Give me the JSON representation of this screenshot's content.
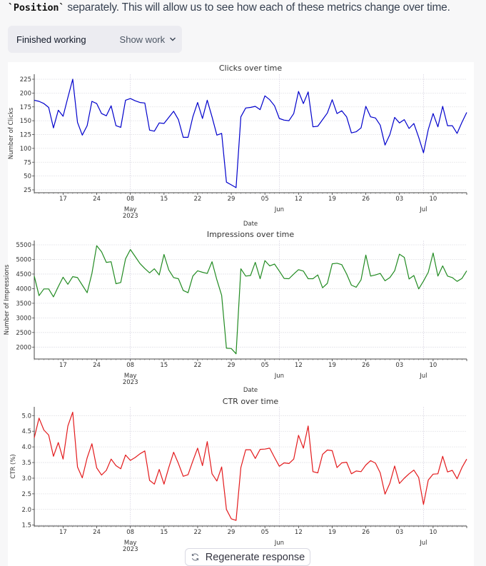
{
  "message": {
    "code_text": "`Position`",
    "text": " separately. This will allow us to see how each of these metrics change over time."
  },
  "work_panel": {
    "status": "Finished working",
    "toggle_label": "Show work",
    "toggle_icon": "chevron-down-icon"
  },
  "regenerate": {
    "label": "Regenerate response",
    "icon": "refresh-icon"
  },
  "chart_data": [
    {
      "type": "line",
      "title": "Clicks over time",
      "xlabel": "Date",
      "ylabel": "Number of Clicks",
      "color": "#0000cc",
      "grid": true,
      "ylim": [
        20,
        235
      ],
      "yticks": [
        25,
        50,
        75,
        100,
        125,
        150,
        175,
        200,
        225
      ],
      "ytick_labels": [
        "25",
        "50",
        "75",
        "100",
        "125",
        "150",
        "175",
        "200",
        "225"
      ],
      "xticks_minor": [
        "17",
        "24",
        "08",
        "15",
        "22",
        "29",
        "05",
        "12",
        "19",
        "26",
        "03",
        "10"
      ],
      "xticks_major": [
        "May\n2023",
        "Jun",
        "Jul"
      ]
    },
    {
      "type": "line",
      "title": "Impressions over time",
      "xlabel": "Date",
      "ylabel": "Number of Impressions",
      "color": "#228B22",
      "grid": true,
      "ylim": [
        1600,
        5650
      ],
      "yticks": [
        2000,
        2500,
        3000,
        3500,
        4000,
        4500,
        5000,
        5500
      ],
      "ytick_labels": [
        "2000",
        "2500",
        "3000",
        "3500",
        "4000",
        "4500",
        "5000",
        "5500"
      ],
      "xticks_minor": [
        "17",
        "24",
        "08",
        "15",
        "22",
        "29",
        "05",
        "12",
        "19",
        "26",
        "03",
        "10"
      ],
      "xticks_major": [
        "May\n2023",
        "Jun",
        "Jul"
      ]
    },
    {
      "type": "line",
      "title": "CTR over time",
      "xlabel": "",
      "ylabel": "CTR (%)",
      "color": "#e31a1c",
      "grid": true,
      "ylim": [
        1.5,
        5.25
      ],
      "yticks": [
        1.5,
        2.0,
        2.5,
        3.0,
        3.5,
        4.0,
        4.5,
        5.0
      ],
      "ytick_labels": [
        "1.5",
        "2.0",
        "2.5",
        "3.0",
        "3.5",
        "4.0",
        "4.5",
        "5.0"
      ],
      "xticks_minor": [
        "17",
        "24",
        "08",
        "15",
        "22",
        "29",
        "05",
        "12",
        "19",
        "26",
        "03",
        "10"
      ],
      "xticks_major": [
        "May\n2023",
        "Jun",
        "Jul"
      ]
    }
  ],
  "series_x": [
    "2023-04-11",
    "2023-04-12",
    "2023-04-13",
    "2023-04-14",
    "2023-04-15",
    "2023-04-16",
    "2023-04-17",
    "2023-04-18",
    "2023-04-19",
    "2023-04-20",
    "2023-04-21",
    "2023-04-22",
    "2023-04-23",
    "2023-04-24",
    "2023-04-25",
    "2023-04-26",
    "2023-04-27",
    "2023-04-28",
    "2023-04-29",
    "2023-04-30",
    "2023-05-01",
    "2023-05-02",
    "2023-05-03",
    "2023-05-04",
    "2023-05-05",
    "2023-05-06",
    "2023-05-07",
    "2023-05-08",
    "2023-05-09",
    "2023-05-10",
    "2023-05-11",
    "2023-05-12",
    "2023-05-13",
    "2023-05-14",
    "2023-05-15",
    "2023-05-16",
    "2023-05-17",
    "2023-05-18",
    "2023-05-19",
    "2023-05-20",
    "2023-05-21",
    "2023-05-22",
    "2023-05-23",
    "2023-05-24",
    "2023-05-25",
    "2023-05-26",
    "2023-05-27",
    "2023-05-28",
    "2023-05-29",
    "2023-05-30",
    "2023-05-31",
    "2023-06-01",
    "2023-06-02",
    "2023-06-03",
    "2023-06-04",
    "2023-06-05",
    "2023-06-06",
    "2023-06-07",
    "2023-06-08",
    "2023-06-09",
    "2023-06-10",
    "2023-06-11",
    "2023-06-12",
    "2023-06-13",
    "2023-06-14",
    "2023-06-15",
    "2023-06-16",
    "2023-06-17",
    "2023-06-18",
    "2023-06-19",
    "2023-06-20",
    "2023-06-21",
    "2023-06-22",
    "2023-06-23",
    "2023-06-24",
    "2023-06-25",
    "2023-06-26",
    "2023-06-27",
    "2023-06-28",
    "2023-06-29",
    "2023-06-30",
    "2023-07-01",
    "2023-07-02",
    "2023-07-03",
    "2023-07-04",
    "2023-07-05",
    "2023-07-06",
    "2023-07-07",
    "2023-07-08",
    "2023-07-09",
    "2023-07-10"
  ],
  "series_values": [
    [
      187,
      185,
      181,
      174,
      137,
      169,
      158,
      192,
      225,
      147,
      124,
      141,
      185,
      181,
      163,
      159,
      177,
      141,
      138,
      187,
      190,
      186,
      183,
      182,
      133,
      131,
      146,
      145,
      156,
      167,
      152,
      120,
      120,
      157,
      183,
      154,
      187,
      157,
      124,
      127,
      39,
      34,
      29,
      157,
      173,
      174,
      176,
      170,
      195,
      188,
      177,
      154,
      151,
      150,
      163,
      203,
      181,
      202,
      139,
      140,
      152,
      164,
      188,
      163,
      168,
      157,
      128,
      130,
      137,
      176,
      157,
      155,
      142,
      106,
      125,
      156,
      146,
      152,
      136,
      145,
      120,
      92,
      134,
      163,
      139,
      176,
      141,
      141,
      127,
      147,
      165
    ],
    [
      4430,
      3760,
      3990,
      3990,
      3720,
      4070,
      4390,
      4150,
      4410,
      4380,
      4120,
      3860,
      4520,
      5470,
      5260,
      4900,
      4920,
      4170,
      4210,
      5020,
      5340,
      5100,
      4860,
      4690,
      4540,
      4680,
      4470,
      5170,
      4640,
      4380,
      4340,
      3940,
      3860,
      4430,
      4610,
      4560,
      4520,
      4920,
      4300,
      3770,
      1960,
      1950,
      1770,
      4680,
      4430,
      4450,
      4900,
      4340,
      4960,
      4780,
      4840,
      4600,
      4350,
      4340,
      4500,
      4650,
      4600,
      4340,
      4340,
      4470,
      4030,
      4180,
      4850,
      4870,
      4820,
      4500,
      4120,
      4050,
      4300,
      5150,
      4430,
      4470,
      4520,
      4270,
      4380,
      4610,
      5180,
      5070,
      4330,
      4450,
      3990,
      4260,
      4560,
      5220,
      4430,
      4780,
      4430,
      4380,
      4250,
      4350,
      4610
    ],
    [
      4.29,
      4.92,
      4.54,
      4.38,
      3.7,
      4.14,
      3.61,
      4.67,
      5.11,
      3.36,
      3.01,
      3.65,
      4.1,
      3.33,
      3.1,
      3.25,
      3.61,
      3.4,
      3.3,
      3.74,
      3.57,
      3.66,
      3.78,
      3.87,
      2.93,
      2.81,
      3.28,
      2.81,
      3.34,
      3.83,
      3.47,
      3.06,
      3.11,
      3.55,
      3.96,
      3.4,
      4.17,
      3.14,
      2.91,
      3.36,
      2.0,
      1.7,
      1.65,
      3.34,
      3.91,
      3.91,
      3.63,
      3.92,
      3.93,
      3.96,
      3.66,
      3.38,
      3.49,
      3.47,
      3.61,
      4.37,
      3.96,
      4.67,
      3.21,
      3.17,
      3.76,
      3.9,
      3.88,
      3.34,
      3.49,
      3.51,
      3.14,
      3.23,
      3.21,
      3.42,
      3.56,
      3.48,
      3.17,
      2.49,
      2.84,
      3.39,
      2.83,
      3.0,
      3.14,
      3.26,
      3.02,
      2.16,
      2.94,
      3.13,
      3.14,
      3.7,
      3.2,
      3.25,
      2.98,
      3.34,
      3.61
    ]
  ]
}
